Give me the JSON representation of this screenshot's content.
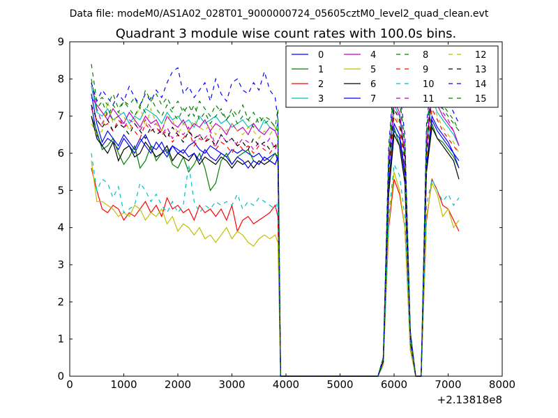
{
  "chart_data": {
    "type": "line",
    "suptitle": "Data file: modeM0/AS1A02_028T01_9000000724_05605cztM0_level2_quad_clean.evt",
    "title": "Quadrant 3 module wise count rates with 100.0s bins.",
    "xlabel": "",
    "ylabel": "",
    "xlim": [
      0,
      8000
    ],
    "ylim": [
      0,
      9
    ],
    "xticks": [
      0,
      1000,
      2000,
      3000,
      4000,
      5000,
      6000,
      7000,
      8000
    ],
    "yticks": [
      0,
      1,
      2,
      3,
      4,
      5,
      6,
      7,
      8,
      9
    ],
    "x_offset_text": "+2.13818e8",
    "legend_position": "top-right",
    "legend_columns": 4,
    "x": [
      400,
      500,
      600,
      700,
      800,
      900,
      1000,
      1100,
      1200,
      1300,
      1400,
      1500,
      1600,
      1700,
      1800,
      1900,
      2000,
      2100,
      2200,
      2300,
      2400,
      2500,
      2600,
      2700,
      2800,
      2900,
      3000,
      3100,
      3200,
      3300,
      3400,
      3500,
      3600,
      3700,
      3800,
      3850,
      3900,
      4000,
      5000,
      5700,
      5800,
      5900,
      6000,
      6100,
      6200,
      6300,
      6400,
      6500,
      6600,
      6700,
      6800,
      6900,
      7000,
      7100,
      7200
    ],
    "series": [
      {
        "name": "0",
        "color": "#0000ff",
        "dash": "solid",
        "values": [
          7.3,
          6.5,
          6.2,
          6.4,
          6.3,
          6.1,
          6.4,
          6.2,
          6.0,
          6.3,
          6.5,
          6.2,
          6.1,
          6.3,
          6.0,
          6.2,
          6.1,
          6.0,
          6.2,
          6.3,
          6.1,
          6.0,
          6.2,
          6.1,
          6.0,
          5.9,
          6.1,
          6.0,
          6.1,
          6.0,
          5.9,
          6.0,
          5.8,
          5.9,
          6.0,
          5.8,
          0,
          0,
          0,
          0,
          0.4,
          5.0,
          6.6,
          6.4,
          5.4,
          1.0,
          0,
          0,
          5.6,
          6.9,
          6.6,
          6.4,
          6.2,
          6.0,
          5.8
        ]
      },
      {
        "name": "1",
        "color": "#008000",
        "dash": "solid",
        "values": [
          7.0,
          6.6,
          6.1,
          6.2,
          6.4,
          6.0,
          5.7,
          5.9,
          6.2,
          5.6,
          5.8,
          6.2,
          5.8,
          6.0,
          6.1,
          5.7,
          5.6,
          5.9,
          5.5,
          5.7,
          6.0,
          5.6,
          5.0,
          5.2,
          5.8,
          6.0,
          5.7,
          5.9,
          6.0,
          6.1,
          5.8,
          5.7,
          5.9,
          5.8,
          6.0,
          5.9,
          0,
          0,
          0,
          0,
          0.4,
          5.0,
          6.7,
          6.2,
          5.2,
          0.9,
          0,
          0,
          5.6,
          6.8,
          6.4,
          6.3,
          6.1,
          5.9,
          5.6
        ]
      },
      {
        "name": "2",
        "color": "#ff0000",
        "dash": "solid",
        "values": [
          5.6,
          5.0,
          4.5,
          4.4,
          4.6,
          4.5,
          4.2,
          4.4,
          4.3,
          4.5,
          4.7,
          4.4,
          4.6,
          4.3,
          4.8,
          4.5,
          4.6,
          4.4,
          4.5,
          4.2,
          4.6,
          4.4,
          4.5,
          4.3,
          4.5,
          4.2,
          4.6,
          3.9,
          4.2,
          4.3,
          4.1,
          4.2,
          4.3,
          4.4,
          4.6,
          4.3,
          0,
          0,
          0,
          0,
          0.3,
          4.0,
          5.3,
          4.9,
          4.0,
          0.7,
          0,
          0,
          4.2,
          5.3,
          5.0,
          4.6,
          4.5,
          4.2,
          3.9
        ]
      },
      {
        "name": "3",
        "color": "#00bfbf",
        "dash": "solid",
        "values": [
          7.8,
          7.1,
          7.0,
          7.2,
          6.9,
          7.0,
          7.1,
          6.8,
          7.0,
          6.9,
          7.2,
          7.1,
          7.0,
          6.8,
          7.1,
          6.9,
          7.0,
          6.8,
          6.9,
          6.7,
          7.0,
          6.8,
          6.9,
          7.0,
          6.8,
          6.9,
          6.7,
          6.8,
          6.9,
          6.7,
          6.8,
          6.6,
          6.9,
          6.7,
          6.6,
          6.8,
          0,
          0,
          0,
          0,
          0.5,
          5.5,
          7.3,
          7.0,
          5.9,
          1.1,
          0,
          0,
          6.1,
          7.5,
          7.1,
          6.9,
          6.7,
          6.5,
          6.2
        ]
      },
      {
        "name": "4",
        "color": "#bf00bf",
        "dash": "solid",
        "values": [
          7.5,
          7.3,
          7.1,
          6.9,
          7.2,
          7.0,
          6.8,
          7.1,
          6.9,
          6.7,
          7.0,
          6.8,
          6.9,
          6.6,
          7.0,
          6.8,
          6.7,
          6.9,
          6.6,
          6.8,
          6.7,
          6.9,
          6.6,
          6.8,
          6.7,
          6.5,
          6.8,
          6.6,
          6.7,
          6.5,
          6.8,
          6.6,
          6.5,
          6.7,
          6.6,
          6.4,
          0,
          0,
          0,
          0,
          0.5,
          5.7,
          7.4,
          7.1,
          6.0,
          1.1,
          0,
          0,
          6.2,
          7.7,
          7.3,
          7.0,
          6.8,
          6.6,
          6.2
        ]
      },
      {
        "name": "5",
        "color": "#bfbf00",
        "dash": "solid",
        "values": [
          5.8,
          4.7,
          4.7,
          4.6,
          4.5,
          4.3,
          4.4,
          4.3,
          4.6,
          4.5,
          4.2,
          4.4,
          4.3,
          4.5,
          4.1,
          4.3,
          3.9,
          4.1,
          4.0,
          3.8,
          4.0,
          3.7,
          3.8,
          3.6,
          3.8,
          4.0,
          3.7,
          3.9,
          3.8,
          3.6,
          3.5,
          3.7,
          3.8,
          3.7,
          3.8,
          3.6,
          0,
          0,
          0,
          0,
          0.3,
          4.1,
          5.5,
          5.0,
          4.0,
          0.7,
          0,
          0,
          4.3,
          5.2,
          4.9,
          4.3,
          4.5,
          4.0,
          4.2
        ]
      },
      {
        "name": "6",
        "color": "#000000",
        "dash": "solid",
        "values": [
          7.0,
          6.4,
          6.2,
          6.0,
          6.3,
          5.8,
          6.1,
          6.2,
          5.9,
          6.0,
          6.3,
          6.1,
          5.9,
          6.0,
          6.2,
          5.8,
          6.0,
          5.9,
          5.8,
          6.0,
          5.7,
          5.9,
          5.8,
          5.7,
          5.9,
          5.8,
          5.6,
          5.8,
          5.7,
          5.8,
          5.6,
          5.8,
          5.7,
          5.8,
          5.7,
          5.9,
          0,
          0,
          0,
          0,
          0.4,
          4.9,
          6.5,
          6.2,
          5.2,
          0.9,
          0,
          0,
          5.5,
          6.7,
          6.4,
          6.2,
          6.0,
          5.8,
          5.3
        ]
      },
      {
        "name": "7",
        "color": "#0000ff",
        "dash": "solid",
        "values": [
          7.6,
          6.8,
          6.3,
          6.6,
          6.4,
          6.2,
          6.5,
          6.3,
          6.1,
          6.4,
          6.2,
          6.0,
          6.3,
          6.1,
          5.9,
          6.2,
          6.0,
          6.1,
          5.9,
          6.0,
          5.8,
          6.1,
          5.9,
          5.8,
          6.0,
          5.9,
          5.7,
          5.9,
          5.8,
          5.6,
          5.8,
          5.7,
          5.9,
          5.8,
          5.7,
          5.9,
          0,
          0,
          0,
          0,
          0.4,
          5.2,
          6.8,
          6.5,
          5.5,
          1.0,
          0,
          0,
          5.7,
          7.0,
          6.7,
          6.5,
          6.3,
          6.0,
          5.6
        ]
      },
      {
        "name": "8",
        "color": "#008000",
        "dash": "dashed",
        "values": [
          8.4,
          7.4,
          7.5,
          7.3,
          7.6,
          7.2,
          7.4,
          7.3,
          7.5,
          7.2,
          7.7,
          7.4,
          7.6,
          7.3,
          7.5,
          7.2,
          7.4,
          7.1,
          7.3,
          7.0,
          7.4,
          7.2,
          7.0,
          7.3,
          7.1,
          6.9,
          7.2,
          7.0,
          7.3,
          6.9,
          7.1,
          6.8,
          7.0,
          6.9,
          6.7,
          7.2,
          0,
          0,
          0,
          0,
          0.5,
          6.0,
          7.9,
          7.5,
          6.3,
          1.2,
          0,
          0,
          6.6,
          8.1,
          7.7,
          7.3,
          7.1,
          6.9,
          6.6
        ]
      },
      {
        "name": "9",
        "color": "#ff0000",
        "dash": "dashed",
        "values": [
          7.2,
          6.9,
          6.7,
          6.8,
          6.6,
          6.9,
          6.7,
          6.8,
          6.6,
          6.4,
          6.8,
          6.6,
          6.7,
          6.5,
          6.6,
          6.3,
          6.5,
          6.4,
          6.6,
          6.2,
          6.4,
          6.3,
          6.5,
          6.1,
          6.3,
          6.2,
          6.0,
          6.3,
          6.1,
          6.2,
          6.0,
          6.2,
          6.1,
          6.0,
          6.2,
          6.0,
          0,
          0,
          0,
          0,
          0.4,
          5.3,
          7.0,
          6.7,
          5.6,
          1.0,
          0,
          0,
          5.8,
          7.2,
          6.9,
          6.6,
          6.4,
          6.2,
          6.0
        ]
      },
      {
        "name": "10",
        "color": "#00bfbf",
        "dash": "dashed",
        "values": [
          6.0,
          5.0,
          5.3,
          5.2,
          4.8,
          5.1,
          4.4,
          4.5,
          4.6,
          5.2,
          5.0,
          4.7,
          4.9,
          4.6,
          4.4,
          4.7,
          4.4,
          4.6,
          5.7,
          4.7,
          4.4,
          4.6,
          4.5,
          4.7,
          4.6,
          4.7,
          4.6,
          4.9,
          4.5,
          4.7,
          4.6,
          4.8,
          4.7,
          4.6,
          4.5,
          4.7,
          0,
          0,
          0,
          0,
          0.3,
          4.3,
          5.7,
          5.4,
          4.3,
          0.8,
          0,
          0,
          4.6,
          5.3,
          5.0,
          4.7,
          4.9,
          4.6,
          4.8
        ]
      },
      {
        "name": "11",
        "color": "#bf00bf",
        "dash": "dashed",
        "values": [
          7.9,
          7.2,
          6.8,
          7.1,
          6.9,
          7.0,
          6.7,
          6.9,
          6.8,
          6.6,
          6.9,
          6.7,
          6.8,
          6.5,
          6.7,
          6.4,
          6.6,
          6.5,
          6.7,
          6.3,
          6.5,
          6.4,
          6.6,
          6.2,
          6.5,
          6.3,
          6.4,
          6.2,
          6.4,
          6.3,
          6.1,
          6.3,
          6.2,
          6.4,
          6.1,
          6.3,
          0,
          0,
          0,
          0,
          0.5,
          5.6,
          7.3,
          7.0,
          5.9,
          1.1,
          0,
          0,
          6.1,
          8.2,
          7.6,
          7.1,
          6.9,
          6.6,
          6.2
        ]
      },
      {
        "name": "12",
        "color": "#bfbf00",
        "dash": "dashed",
        "values": [
          6.8,
          6.5,
          6.6,
          7.4,
          6.8,
          7.1,
          7.0,
          6.6,
          6.9,
          7.3,
          6.7,
          7.2,
          6.8,
          6.6,
          7.0,
          6.9,
          6.5,
          6.8,
          6.6,
          6.9,
          6.7,
          6.6,
          6.8,
          6.5,
          6.7,
          6.6,
          6.8,
          6.6,
          6.5,
          6.7,
          6.6,
          6.4,
          6.6,
          6.5,
          6.7,
          6.5,
          0,
          0,
          0,
          0,
          0.5,
          5.4,
          7.1,
          6.8,
          5.7,
          1.0,
          0,
          0,
          5.9,
          7.4,
          7.0,
          6.7,
          6.5,
          6.3,
          6.0
        ]
      },
      {
        "name": "13",
        "color": "#000000",
        "dash": "dashed",
        "values": [
          7.3,
          6.9,
          6.7,
          6.9,
          6.6,
          6.8,
          6.7,
          6.5,
          6.8,
          6.6,
          6.4,
          6.7,
          6.5,
          6.6,
          6.4,
          6.7,
          6.5,
          6.3,
          6.6,
          6.4,
          6.5,
          6.3,
          6.4,
          6.2,
          6.5,
          6.3,
          6.4,
          6.2,
          6.3,
          6.1,
          6.4,
          6.2,
          6.3,
          6.1,
          6.2,
          6.3,
          0,
          0,
          0,
          0,
          0.4,
          5.5,
          7.2,
          6.9,
          5.8,
          1.1,
          0,
          0,
          6.0,
          7.6,
          7.3,
          8.2,
          7.7,
          7.3,
          7.2
        ]
      },
      {
        "name": "14",
        "color": "#0000ff",
        "dash": "dashed",
        "values": [
          7.9,
          7.4,
          7.7,
          7.5,
          7.3,
          7.6,
          7.4,
          7.8,
          7.5,
          7.3,
          7.6,
          7.4,
          7.7,
          7.5,
          7.9,
          8.2,
          8.3,
          7.6,
          7.8,
          7.5,
          7.7,
          7.9,
          7.4,
          8.0,
          7.6,
          7.4,
          7.9,
          8.0,
          7.7,
          7.6,
          7.9,
          7.7,
          8.2,
          7.7,
          7.5,
          6.9,
          0,
          0,
          0,
          0,
          0.5,
          6.2,
          8.0,
          7.7,
          6.5,
          1.2,
          0,
          0,
          6.8,
          8.1,
          7.9,
          7.6,
          7.4,
          7.1,
          6.8
        ]
      },
      {
        "name": "15",
        "color": "#008000",
        "dash": "dashed",
        "values": [
          8.0,
          7.2,
          7.4,
          7.0,
          7.3,
          7.1,
          7.4,
          7.2,
          7.0,
          7.3,
          7.1,
          7.5,
          7.2,
          7.0,
          7.3,
          7.1,
          6.9,
          7.2,
          7.0,
          7.3,
          6.9,
          7.1,
          6.8,
          7.0,
          7.2,
          6.9,
          7.1,
          6.8,
          7.0,
          6.9,
          6.7,
          7.0,
          6.8,
          6.9,
          6.7,
          6.6,
          0,
          0,
          0,
          0,
          0.5,
          5.9,
          7.7,
          7.4,
          6.2,
          1.2,
          0,
          0,
          6.5,
          7.9,
          7.5,
          7.2,
          7.0,
          6.8,
          6.6
        ]
      }
    ]
  }
}
